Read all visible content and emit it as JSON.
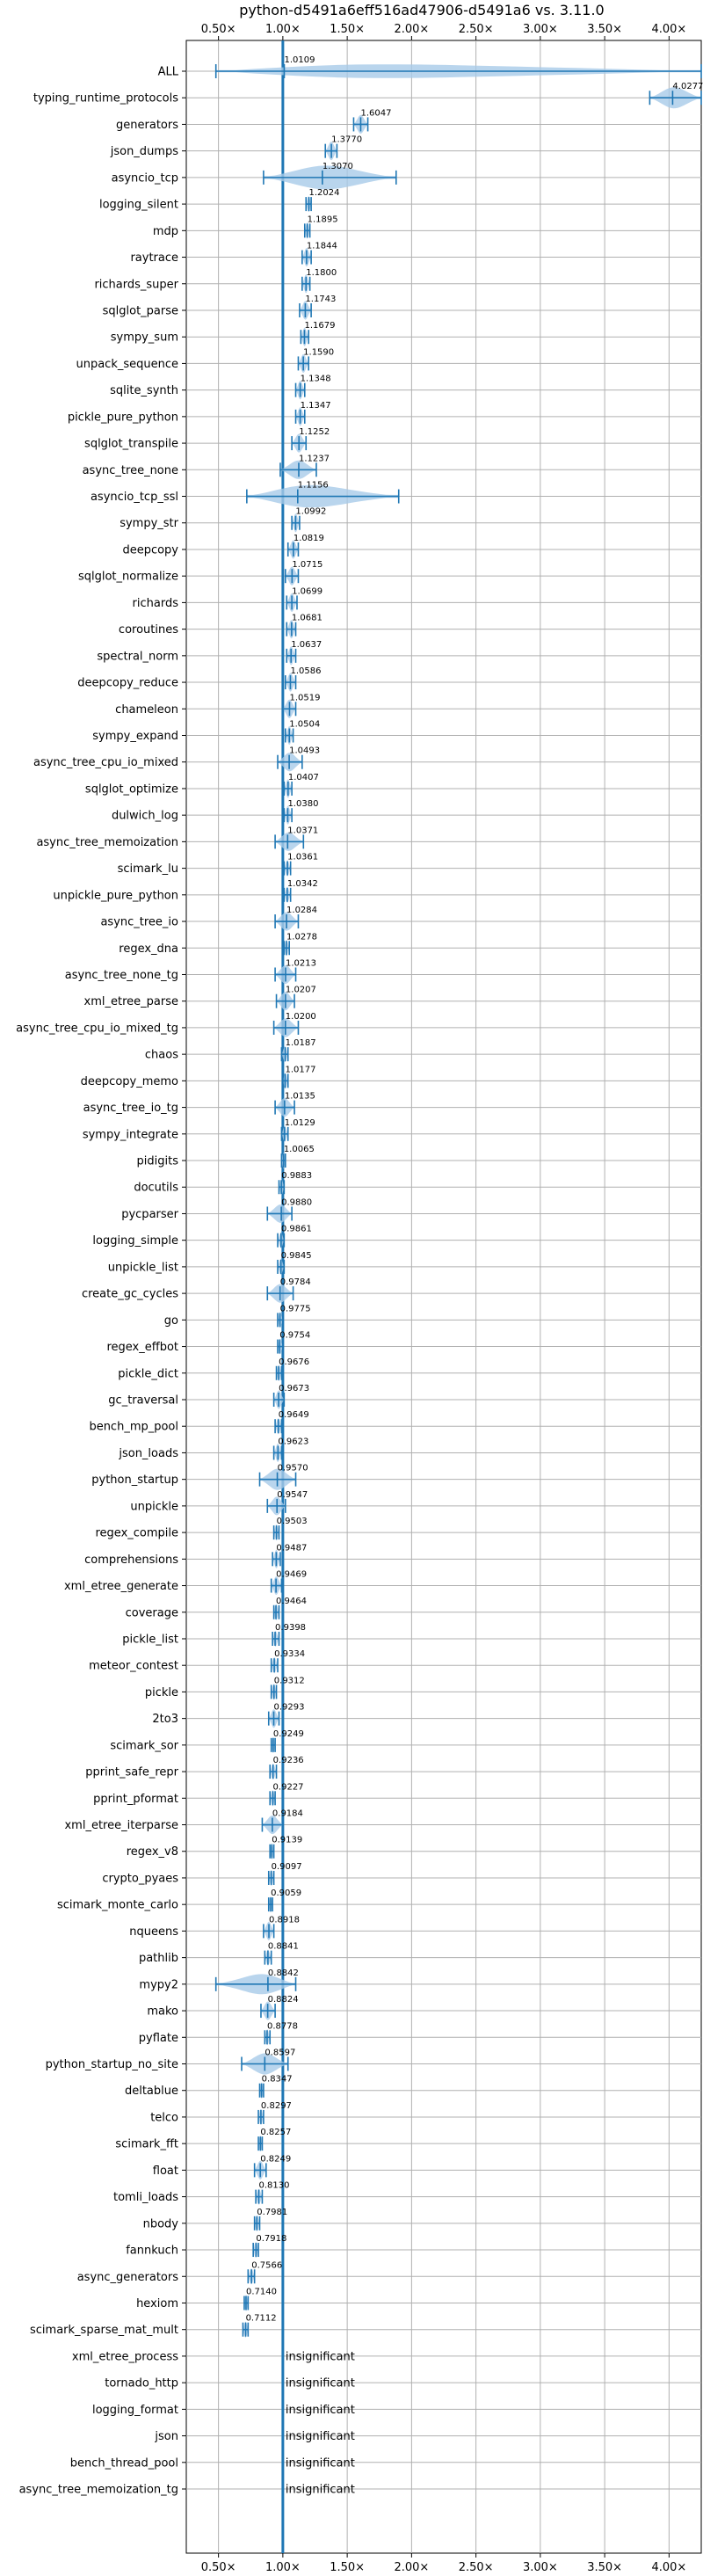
{
  "chart_data": {
    "type": "violin",
    "title": "python-d5491a6eff516ad47906-d5491a6 vs. 3.11.0",
    "xlabel": "",
    "ylabel": "",
    "xlim": [
      0.25,
      4.25
    ],
    "grid": true,
    "reference_line": 1.0,
    "ticks": [
      {
        "value": 0.5,
        "label": "0.50×"
      },
      {
        "value": 1.0,
        "label": "1.00×"
      },
      {
        "value": 1.5,
        "label": "1.50×"
      },
      {
        "value": 2.0,
        "label": "2.00×"
      },
      {
        "value": 2.5,
        "label": "2.50×"
      },
      {
        "value": 3.0,
        "label": "3.00×"
      },
      {
        "value": 3.5,
        "label": "3.50×"
      },
      {
        "value": 4.0,
        "label": "4.00×"
      }
    ],
    "colors": {
      "body": "#a8cbe8",
      "line": "#1f77b4",
      "ref": "#1f77b4",
      "grid": "#b0b0b0"
    },
    "insignificant_label": "insignificant",
    "rows": [
      {
        "name": "ALL",
        "value": 1.0109,
        "label": "1.0109",
        "lo": 0.48,
        "hi": 4.25,
        "w": 0.35
      },
      {
        "name": "typing_runtime_protocols",
        "value": 4.0277,
        "label": "4.0277",
        "lo": 3.85,
        "hi": 4.25,
        "w": 0.4
      },
      {
        "name": "generators",
        "value": 1.6047,
        "label": "1.6047",
        "lo": 1.55,
        "hi": 1.66,
        "w": 0.35
      },
      {
        "name": "json_dumps",
        "value": 1.377,
        "label": "1.3770",
        "lo": 1.33,
        "hi": 1.42,
        "w": 0.35
      },
      {
        "name": "asyncio_tcp",
        "value": 1.307,
        "label": "1.3070",
        "lo": 0.85,
        "hi": 1.88,
        "w": 0.45
      },
      {
        "name": "logging_silent",
        "value": 1.2024,
        "label": "1.2024",
        "lo": 1.18,
        "hi": 1.22,
        "w": 0.3
      },
      {
        "name": "mdp",
        "value": 1.1895,
        "label": "1.1895",
        "lo": 1.17,
        "hi": 1.21,
        "w": 0.3
      },
      {
        "name": "raytrace",
        "value": 1.1844,
        "label": "1.1844",
        "lo": 1.15,
        "hi": 1.22,
        "w": 0.35
      },
      {
        "name": "richards_super",
        "value": 1.18,
        "label": "1.1800",
        "lo": 1.15,
        "hi": 1.21,
        "w": 0.35
      },
      {
        "name": "sqlglot_parse",
        "value": 1.1743,
        "label": "1.1743",
        "lo": 1.13,
        "hi": 1.22,
        "w": 0.35
      },
      {
        "name": "sympy_sum",
        "value": 1.1679,
        "label": "1.1679",
        "lo": 1.14,
        "hi": 1.2,
        "w": 0.35
      },
      {
        "name": "unpack_sequence",
        "value": 1.159,
        "label": "1.1590",
        "lo": 1.12,
        "hi": 1.2,
        "w": 0.35
      },
      {
        "name": "sqlite_synth",
        "value": 1.1348,
        "label": "1.1348",
        "lo": 1.1,
        "hi": 1.17,
        "w": 0.35
      },
      {
        "name": "pickle_pure_python",
        "value": 1.1347,
        "label": "1.1347",
        "lo": 1.1,
        "hi": 1.17,
        "w": 0.35
      },
      {
        "name": "sqlglot_transpile",
        "value": 1.1252,
        "label": "1.1252",
        "lo": 1.07,
        "hi": 1.18,
        "w": 0.35
      },
      {
        "name": "async_tree_none",
        "value": 1.1237,
        "label": "1.1237",
        "lo": 0.98,
        "hi": 1.26,
        "w": 0.35
      },
      {
        "name": "asyncio_tcp_ssl",
        "value": 1.1156,
        "label": "1.1156",
        "lo": 0.72,
        "hi": 1.9,
        "w": 0.45
      },
      {
        "name": "sympy_str",
        "value": 1.0992,
        "label": "1.0992",
        "lo": 1.07,
        "hi": 1.13,
        "w": 0.35
      },
      {
        "name": "deepcopy",
        "value": 1.0819,
        "label": "1.0819",
        "lo": 1.04,
        "hi": 1.12,
        "w": 0.35
      },
      {
        "name": "sqlglot_normalize",
        "value": 1.0715,
        "label": "1.0715",
        "lo": 1.02,
        "hi": 1.12,
        "w": 0.35
      },
      {
        "name": "richards",
        "value": 1.0699,
        "label": "1.0699",
        "lo": 1.03,
        "hi": 1.11,
        "w": 0.35
      },
      {
        "name": "coroutines",
        "value": 1.0681,
        "label": "1.0681",
        "lo": 1.03,
        "hi": 1.1,
        "w": 0.35
      },
      {
        "name": "spectral_norm",
        "value": 1.0637,
        "label": "1.0637",
        "lo": 1.03,
        "hi": 1.1,
        "w": 0.35
      },
      {
        "name": "deepcopy_reduce",
        "value": 1.0586,
        "label": "1.0586",
        "lo": 1.02,
        "hi": 1.1,
        "w": 0.35
      },
      {
        "name": "chameleon",
        "value": 1.0519,
        "label": "1.0519",
        "lo": 1.0,
        "hi": 1.1,
        "w": 0.35
      },
      {
        "name": "sympy_expand",
        "value": 1.0504,
        "label": "1.0504",
        "lo": 1.02,
        "hi": 1.08,
        "w": 0.35
      },
      {
        "name": "async_tree_cpu_io_mixed",
        "value": 1.0493,
        "label": "1.0493",
        "lo": 0.96,
        "hi": 1.15,
        "w": 0.35
      },
      {
        "name": "sqlglot_optimize",
        "value": 1.0407,
        "label": "1.0407",
        "lo": 1.01,
        "hi": 1.07,
        "w": 0.35
      },
      {
        "name": "dulwich_log",
        "value": 1.038,
        "label": "1.0380",
        "lo": 1.01,
        "hi": 1.07,
        "w": 0.35
      },
      {
        "name": "async_tree_memoization",
        "value": 1.0371,
        "label": "1.0371",
        "lo": 0.94,
        "hi": 1.16,
        "w": 0.35
      },
      {
        "name": "scimark_lu",
        "value": 1.0361,
        "label": "1.0361",
        "lo": 1.01,
        "hi": 1.06,
        "w": 0.3
      },
      {
        "name": "unpickle_pure_python",
        "value": 1.0342,
        "label": "1.0342",
        "lo": 1.01,
        "hi": 1.06,
        "w": 0.3
      },
      {
        "name": "async_tree_io",
        "value": 1.0284,
        "label": "1.0284",
        "lo": 0.94,
        "hi": 1.12,
        "w": 0.35
      },
      {
        "name": "regex_dna",
        "value": 1.0278,
        "label": "1.0278",
        "lo": 1.01,
        "hi": 1.05,
        "w": 0.3
      },
      {
        "name": "async_tree_none_tg",
        "value": 1.0213,
        "label": "1.0213",
        "lo": 0.94,
        "hi": 1.1,
        "w": 0.35
      },
      {
        "name": "xml_etree_parse",
        "value": 1.0207,
        "label": "1.0207",
        "lo": 0.95,
        "hi": 1.09,
        "w": 0.35
      },
      {
        "name": "async_tree_cpu_io_mixed_tg",
        "value": 1.02,
        "label": "1.0200",
        "lo": 0.93,
        "hi": 1.12,
        "w": 0.35
      },
      {
        "name": "chaos",
        "value": 1.0187,
        "label": "1.0187",
        "lo": 0.99,
        "hi": 1.04,
        "w": 0.3
      },
      {
        "name": "deepcopy_memo",
        "value": 1.0177,
        "label": "1.0177",
        "lo": 1.0,
        "hi": 1.04,
        "w": 0.3
      },
      {
        "name": "async_tree_io_tg",
        "value": 1.0135,
        "label": "1.0135",
        "lo": 0.94,
        "hi": 1.09,
        "w": 0.35
      },
      {
        "name": "sympy_integrate",
        "value": 1.0129,
        "label": "1.0129",
        "lo": 0.99,
        "hi": 1.04,
        "w": 0.3
      },
      {
        "name": "pidigits",
        "value": 1.0065,
        "label": "1.0065",
        "lo": 0.99,
        "hi": 1.02,
        "w": 0.3
      },
      {
        "name": "docutils",
        "value": 0.9883,
        "label": "0.9883",
        "lo": 0.97,
        "hi": 1.01,
        "w": 0.3
      },
      {
        "name": "pycparser",
        "value": 0.988,
        "label": "0.9880",
        "lo": 0.88,
        "hi": 1.07,
        "w": 0.35
      },
      {
        "name": "logging_simple",
        "value": 0.9861,
        "label": "0.9861",
        "lo": 0.96,
        "hi": 1.01,
        "w": 0.3
      },
      {
        "name": "unpickle_list",
        "value": 0.9845,
        "label": "0.9845",
        "lo": 0.96,
        "hi": 1.01,
        "w": 0.3
      },
      {
        "name": "create_gc_cycles",
        "value": 0.9784,
        "label": "0.9784",
        "lo": 0.88,
        "hi": 1.08,
        "w": 0.35
      },
      {
        "name": "go",
        "value": 0.9775,
        "label": "0.9775",
        "lo": 0.96,
        "hi": 1.0,
        "w": 0.3
      },
      {
        "name": "regex_effbot",
        "value": 0.9754,
        "label": "0.9754",
        "lo": 0.96,
        "hi": 1.0,
        "w": 0.3
      },
      {
        "name": "pickle_dict",
        "value": 0.9676,
        "label": "0.9676",
        "lo": 0.95,
        "hi": 0.99,
        "w": 0.3
      },
      {
        "name": "gc_traversal",
        "value": 0.9673,
        "label": "0.9673",
        "lo": 0.93,
        "hi": 1.01,
        "w": 0.35
      },
      {
        "name": "bench_mp_pool",
        "value": 0.9649,
        "label": "0.9649",
        "lo": 0.94,
        "hi": 0.99,
        "w": 0.3
      },
      {
        "name": "json_loads",
        "value": 0.9623,
        "label": "0.9623",
        "lo": 0.93,
        "hi": 0.99,
        "w": 0.35
      },
      {
        "name": "python_startup",
        "value": 0.957,
        "label": "0.9570",
        "lo": 0.82,
        "hi": 1.1,
        "w": 0.4
      },
      {
        "name": "unpickle",
        "value": 0.9547,
        "label": "0.9547",
        "lo": 0.88,
        "hi": 1.02,
        "w": 0.35
      },
      {
        "name": "regex_compile",
        "value": 0.9503,
        "label": "0.9503",
        "lo": 0.93,
        "hi": 0.97,
        "w": 0.3
      },
      {
        "name": "comprehensions",
        "value": 0.9487,
        "label": "0.9487",
        "lo": 0.92,
        "hi": 0.98,
        "w": 0.35
      },
      {
        "name": "xml_etree_generate",
        "value": 0.9469,
        "label": "0.9469",
        "lo": 0.91,
        "hi": 0.99,
        "w": 0.35
      },
      {
        "name": "coverage",
        "value": 0.9464,
        "label": "0.9464",
        "lo": 0.93,
        "hi": 0.97,
        "w": 0.3
      },
      {
        "name": "pickle_list",
        "value": 0.9398,
        "label": "0.9398",
        "lo": 0.92,
        "hi": 0.97,
        "w": 0.3
      },
      {
        "name": "meteor_contest",
        "value": 0.9334,
        "label": "0.9334",
        "lo": 0.91,
        "hi": 0.96,
        "w": 0.3
      },
      {
        "name": "pickle",
        "value": 0.9312,
        "label": "0.9312",
        "lo": 0.91,
        "hi": 0.95,
        "w": 0.3
      },
      {
        "name": "2to3",
        "value": 0.9293,
        "label": "0.9293",
        "lo": 0.89,
        "hi": 0.97,
        "w": 0.35
      },
      {
        "name": "scimark_sor",
        "value": 0.9249,
        "label": "0.9249",
        "lo": 0.91,
        "hi": 0.94,
        "w": 0.3
      },
      {
        "name": "pprint_safe_repr",
        "value": 0.9236,
        "label": "0.9236",
        "lo": 0.9,
        "hi": 0.95,
        "w": 0.3
      },
      {
        "name": "pprint_pformat",
        "value": 0.9227,
        "label": "0.9227",
        "lo": 0.9,
        "hi": 0.94,
        "w": 0.3
      },
      {
        "name": "xml_etree_iterparse",
        "value": 0.9184,
        "label": "0.9184",
        "lo": 0.84,
        "hi": 1.0,
        "w": 0.35
      },
      {
        "name": "regex_v8",
        "value": 0.9139,
        "label": "0.9139",
        "lo": 0.9,
        "hi": 0.93,
        "w": 0.3
      },
      {
        "name": "crypto_pyaes",
        "value": 0.9097,
        "label": "0.9097",
        "lo": 0.89,
        "hi": 0.93,
        "w": 0.3
      },
      {
        "name": "scimark_monte_carlo",
        "value": 0.9059,
        "label": "0.9059",
        "lo": 0.89,
        "hi": 0.92,
        "w": 0.3
      },
      {
        "name": "nqueens",
        "value": 0.8918,
        "label": "0.8918",
        "lo": 0.85,
        "hi": 0.93,
        "w": 0.35
      },
      {
        "name": "pathlib",
        "value": 0.8841,
        "label": "0.8841",
        "lo": 0.86,
        "hi": 0.91,
        "w": 0.3
      },
      {
        "name": "mypy2",
        "value": 0.8842,
        "label": "0.8842",
        "lo": 0.48,
        "hi": 1.1,
        "w": 0.4
      },
      {
        "name": "mako",
        "value": 0.8824,
        "label": "0.8824",
        "lo": 0.83,
        "hi": 0.94,
        "w": 0.35
      },
      {
        "name": "pyflate",
        "value": 0.8778,
        "label": "0.8778",
        "lo": 0.86,
        "hi": 0.9,
        "w": 0.3
      },
      {
        "name": "python_startup_no_site",
        "value": 0.8597,
        "label": "0.8597",
        "lo": 0.68,
        "hi": 1.04,
        "w": 0.4
      },
      {
        "name": "deltablue",
        "value": 0.8347,
        "label": "0.8347",
        "lo": 0.82,
        "hi": 0.85,
        "w": 0.3
      },
      {
        "name": "telco",
        "value": 0.8297,
        "label": "0.8297",
        "lo": 0.81,
        "hi": 0.85,
        "w": 0.3
      },
      {
        "name": "scimark_fft",
        "value": 0.8257,
        "label": "0.8257",
        "lo": 0.81,
        "hi": 0.84,
        "w": 0.3
      },
      {
        "name": "float",
        "value": 0.8249,
        "label": "0.8249",
        "lo": 0.78,
        "hi": 0.87,
        "w": 0.35
      },
      {
        "name": "tomli_loads",
        "value": 0.813,
        "label": "0.8130",
        "lo": 0.79,
        "hi": 0.84,
        "w": 0.3
      },
      {
        "name": "nbody",
        "value": 0.7981,
        "label": "0.7981",
        "lo": 0.78,
        "hi": 0.82,
        "w": 0.3
      },
      {
        "name": "fannkuch",
        "value": 0.7918,
        "label": "0.7918",
        "lo": 0.77,
        "hi": 0.81,
        "w": 0.3
      },
      {
        "name": "async_generators",
        "value": 0.7566,
        "label": "0.7566",
        "lo": 0.73,
        "hi": 0.78,
        "w": 0.3
      },
      {
        "name": "hexiom",
        "value": 0.714,
        "label": "0.7140",
        "lo": 0.7,
        "hi": 0.73,
        "w": 0.3
      },
      {
        "name": "scimark_sparse_mat_mult",
        "value": 0.7112,
        "label": "0.7112",
        "lo": 0.69,
        "hi": 0.73,
        "w": 0.3
      },
      {
        "name": "xml_etree_process",
        "insignificant": true
      },
      {
        "name": "tornado_http",
        "insignificant": true
      },
      {
        "name": "logging_format",
        "insignificant": true
      },
      {
        "name": "json",
        "insignificant": true
      },
      {
        "name": "bench_thread_pool",
        "insignificant": true
      },
      {
        "name": "async_tree_memoization_tg",
        "insignificant": true
      }
    ]
  }
}
